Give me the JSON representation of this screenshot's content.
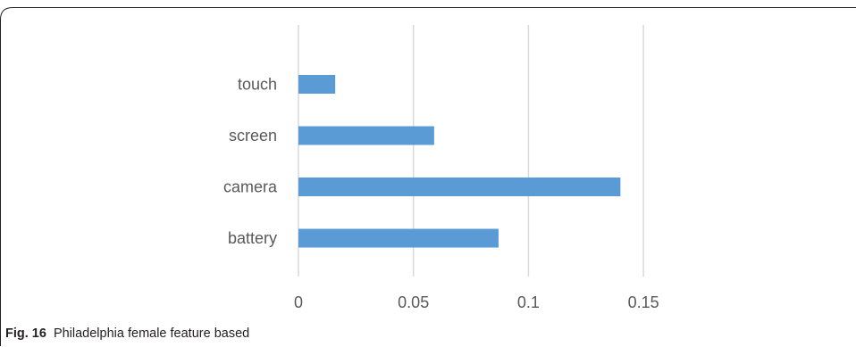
{
  "chart_data": {
    "type": "bar",
    "orientation": "horizontal",
    "categories": [
      "touch",
      "screen",
      "camera",
      "battery"
    ],
    "values": [
      0.016,
      0.059,
      0.14,
      0.087
    ],
    "xlim": [
      0,
      0.2
    ],
    "xticks": [
      "0",
      "0.05",
      "0.1",
      "0.15"
    ],
    "xtick_values": [
      0,
      0.05,
      0.1,
      0.15
    ],
    "grid": "vertical",
    "legend": "none",
    "bar_color": "#5b9bd5",
    "grid_color": "#d9d9d9"
  },
  "caption": {
    "label": "Fig. 16",
    "text": "Philadelphia female feature based"
  },
  "colors": {
    "border": "#231f20",
    "tick_text": "#595959"
  }
}
